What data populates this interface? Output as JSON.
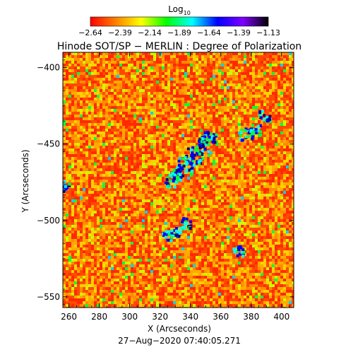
{
  "chart_data": {
    "type": "heatmap",
    "title": "Hinode SOT/SP − MERLIN : Degree of Polarization",
    "xlabel": "X (Arcseconds)",
    "ylabel": "Y (Arcseconds)",
    "timestamp": "27−Aug−2020 07:40:05.271",
    "xlim": [
      256,
      408
    ],
    "ylim": [
      -557,
      -390
    ],
    "x_ticks": [
      260,
      280,
      300,
      320,
      340,
      360,
      380,
      400
    ],
    "y_ticks": [
      -400,
      -450,
      -500,
      -550
    ],
    "x_tick_labels": [
      "260",
      "280",
      "300",
      "320",
      "340",
      "360",
      "380",
      "400"
    ],
    "y_tick_labels": [
      "−400",
      "−450",
      "−500",
      "−550"
    ],
    "colorbar": {
      "label_base": "Log",
      "label_sub": "10",
      "min": -2.64,
      "max": -1.13,
      "tick_labels": [
        "−2.64",
        "−2.39",
        "−2.14",
        "−1.89",
        "−1.64",
        "−1.39",
        "−1.13"
      ],
      "colors": [
        "#ff0000",
        "#ff8000",
        "#ffff00",
        "#00ff00",
        "#00ffff",
        "#0000ff",
        "#8000ff",
        "#000000"
      ]
    },
    "grid": false,
    "colors": {
      "background": "#ff6a00",
      "field_base": "#f25c00"
    }
  }
}
